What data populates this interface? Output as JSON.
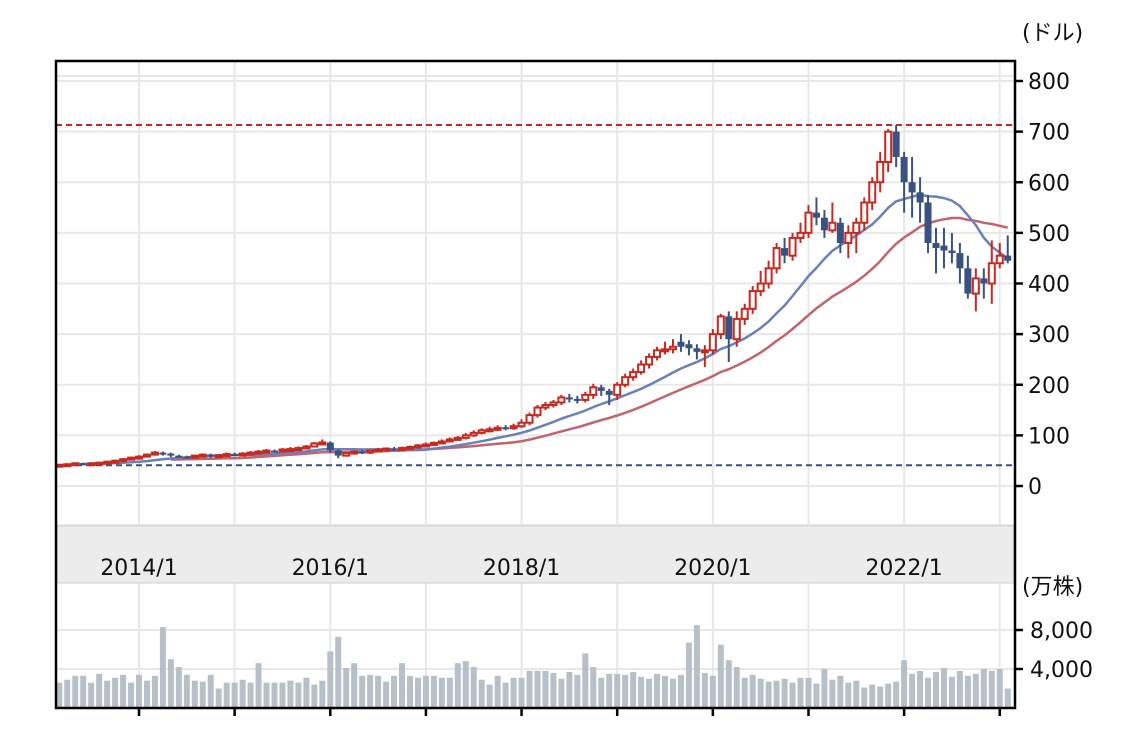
{
  "chart_data": {
    "type": "candlestick",
    "price_unit_label": "(ドル)",
    "volume_unit_label": "(万株)",
    "start_month": "2013/3",
    "x_tick_labels": [
      "2014/1",
      "2016/1",
      "2018/1",
      "2020/1",
      "2022/1"
    ],
    "x_year_ticks": [
      "2014/1",
      "2015/1",
      "2016/1",
      "2017/1",
      "2018/1",
      "2019/1",
      "2020/1",
      "2021/1",
      "2022/1",
      "2023/1"
    ],
    "price_ticks": [
      0,
      100,
      200,
      300,
      400,
      500,
      600,
      700,
      800
    ],
    "price_ylim": [
      -75,
      810
    ],
    "volume_ticks": [
      {
        "value": 4000,
        "label": "4,000"
      },
      {
        "value": 8000,
        "label": "8,000"
      }
    ],
    "volume_ylim": [
      0,
      8000
    ],
    "grid": true,
    "colors": {
      "up": "#c8281e",
      "down": "#3b5280",
      "ma_short": "#6a80b8",
      "ma_long": "#c0646e",
      "volume": "#b7c0c8",
      "high_line": "#c8281e",
      "low_line": "#3b5280"
    },
    "high_line": 713,
    "low_line": 41,
    "candles_ohlc": [
      [
        41,
        43,
        41,
        42
      ],
      [
        42,
        44,
        42,
        43
      ],
      [
        43,
        46,
        42,
        45
      ],
      [
        45,
        46,
        42,
        43
      ],
      [
        43,
        46,
        42,
        45
      ],
      [
        45,
        48,
        43,
        46
      ],
      [
        46,
        50,
        45,
        48
      ],
      [
        48,
        52,
        46,
        50
      ],
      [
        50,
        55,
        49,
        53
      ],
      [
        53,
        58,
        52,
        56
      ],
      [
        56,
        61,
        54,
        58
      ],
      [
        58,
        64,
        57,
        62
      ],
      [
        62,
        69,
        60,
        66
      ],
      [
        66,
        68,
        60,
        64
      ],
      [
        64,
        66,
        57,
        60
      ],
      [
        60,
        62,
        56,
        58
      ],
      [
        58,
        60,
        55,
        57
      ],
      [
        57,
        62,
        55,
        60
      ],
      [
        60,
        64,
        58,
        62
      ],
      [
        62,
        64,
        56,
        60
      ],
      [
        60,
        63,
        58,
        61
      ],
      [
        61,
        66,
        59,
        63
      ],
      [
        63,
        66,
        59,
        62
      ],
      [
        62,
        67,
        60,
        64
      ],
      [
        64,
        69,
        62,
        66
      ],
      [
        66,
        71,
        64,
        68
      ],
      [
        68,
        73,
        66,
        70
      ],
      [
        70,
        72,
        66,
        69
      ],
      [
        69,
        75,
        67,
        72
      ],
      [
        72,
        77,
        68,
        73
      ],
      [
        73,
        78,
        70,
        75
      ],
      [
        75,
        81,
        73,
        78
      ],
      [
        78,
        87,
        76,
        84
      ],
      [
        84,
        92,
        82,
        86
      ],
      [
        86,
        88,
        66,
        70
      ],
      [
        70,
        72,
        55,
        60
      ],
      [
        60,
        67,
        58,
        65
      ],
      [
        65,
        70,
        62,
        68
      ],
      [
        68,
        71,
        63,
        66
      ],
      [
        66,
        72,
        63,
        70
      ],
      [
        70,
        75,
        68,
        72
      ],
      [
        72,
        76,
        70,
        74
      ],
      [
        74,
        77,
        70,
        73
      ],
      [
        73,
        78,
        71,
        75
      ],
      [
        75,
        80,
        72,
        77
      ],
      [
        77,
        83,
        75,
        80
      ],
      [
        80,
        86,
        78,
        82
      ],
      [
        82,
        88,
        80,
        85
      ],
      [
        85,
        92,
        83,
        88
      ],
      [
        88,
        96,
        86,
        92
      ],
      [
        92,
        99,
        90,
        95
      ],
      [
        95,
        105,
        92,
        100
      ],
      [
        100,
        110,
        97,
        105
      ],
      [
        105,
        114,
        102,
        110
      ],
      [
        110,
        117,
        106,
        112
      ],
      [
        112,
        120,
        108,
        115
      ],
      [
        116,
        120,
        110,
        115
      ],
      [
        115,
        123,
        111,
        118
      ],
      [
        118,
        132,
        115,
        125
      ],
      [
        125,
        145,
        120,
        140
      ],
      [
        140,
        160,
        135,
        155
      ],
      [
        155,
        166,
        150,
        160
      ],
      [
        160,
        170,
        155,
        165
      ],
      [
        165,
        180,
        160,
        175
      ],
      [
        175,
        182,
        165,
        172
      ],
      [
        172,
        178,
        163,
        170
      ],
      [
        170,
        186,
        165,
        180
      ],
      [
        180,
        202,
        172,
        195
      ],
      [
        195,
        200,
        178,
        188
      ],
      [
        188,
        192,
        160,
        180
      ],
      [
        180,
        205,
        170,
        200
      ],
      [
        200,
        222,
        195,
        215
      ],
      [
        215,
        232,
        208,
        225
      ],
      [
        225,
        248,
        220,
        240
      ],
      [
        240,
        262,
        232,
        255
      ],
      [
        255,
        275,
        248,
        268
      ],
      [
        268,
        285,
        260,
        270
      ],
      [
        270,
        290,
        262,
        275
      ],
      [
        285,
        300,
        265,
        275
      ],
      [
        280,
        288,
        258,
        272
      ],
      [
        272,
        280,
        250,
        265
      ],
      [
        265,
        278,
        235,
        268
      ],
      [
        268,
        310,
        260,
        300
      ],
      [
        300,
        340,
        290,
        335
      ],
      [
        335,
        345,
        245,
        290
      ],
      [
        290,
        345,
        275,
        330
      ],
      [
        330,
        360,
        318,
        350
      ],
      [
        350,
        395,
        340,
        385
      ],
      [
        385,
        425,
        375,
        400
      ],
      [
        400,
        445,
        390,
        430
      ],
      [
        430,
        480,
        420,
        470
      ],
      [
        470,
        490,
        440,
        455
      ],
      [
        455,
        500,
        445,
        490
      ],
      [
        490,
        520,
        480,
        500
      ],
      [
        500,
        555,
        490,
        540
      ],
      [
        540,
        570,
        515,
        530
      ],
      [
        530,
        545,
        490,
        505
      ],
      [
        505,
        560,
        500,
        520
      ],
      [
        520,
        530,
        460,
        480
      ],
      [
        480,
        515,
        450,
        500
      ],
      [
        500,
        530,
        460,
        520
      ],
      [
        520,
        570,
        505,
        560
      ],
      [
        560,
        610,
        545,
        600
      ],
      [
        600,
        660,
        580,
        640
      ],
      [
        640,
        705,
        620,
        700
      ],
      [
        700,
        713,
        630,
        650
      ],
      [
        650,
        660,
        540,
        600
      ],
      [
        600,
        650,
        530,
        580
      ],
      [
        580,
        610,
        520,
        560
      ],
      [
        560,
        575,
        460,
        480
      ],
      [
        480,
        510,
        420,
        470
      ],
      [
        475,
        510,
        430,
        465
      ],
      [
        465,
        500,
        440,
        460
      ],
      [
        460,
        480,
        400,
        430
      ],
      [
        430,
        455,
        370,
        380
      ],
      [
        380,
        430,
        345,
        410
      ],
      [
        410,
        430,
        370,
        400
      ],
      [
        400,
        485,
        360,
        440
      ],
      [
        440,
        480,
        430,
        455
      ],
      [
        455,
        495,
        440,
        445
      ]
    ],
    "volume": [
      2600,
      2900,
      3300,
      3300,
      2600,
      3500,
      2800,
      3100,
      3400,
      2600,
      3400,
      2800,
      3300,
      8300,
      5000,
      4200,
      3400,
      2800,
      2700,
      3400,
      2000,
      2600,
      2600,
      2900,
      2600,
      4600,
      2600,
      2600,
      2600,
      2800,
      2600,
      3100,
      2400,
      2800,
      5800,
      7300,
      4100,
      4600,
      3300,
      3400,
      3300,
      2700,
      3300,
      4600,
      3300,
      3100,
      3300,
      3300,
      3100,
      3100,
      4600,
      4800,
      4200,
      2900,
      2400,
      3300,
      2600,
      3100,
      3100,
      3800,
      3800,
      3800,
      3600,
      3000,
      3700,
      3400,
      5600,
      4200,
      3100,
      3500,
      3500,
      3400,
      3700,
      3200,
      3000,
      3500,
      3300,
      3000,
      3400,
      6700,
      8500,
      3600,
      3300,
      6500,
      4900,
      4200,
      3100,
      3400,
      3000,
      2700,
      2800,
      3000,
      2600,
      3100,
      3100,
      2500,
      4000,
      2900,
      3300,
      2600,
      2800,
      2100,
      2400,
      2200,
      2500,
      2700,
      4900,
      3500,
      3800,
      3100,
      3700,
      4100,
      3200,
      3800,
      3300,
      3500,
      4000,
      3800,
      4000,
      2000
    ]
  }
}
